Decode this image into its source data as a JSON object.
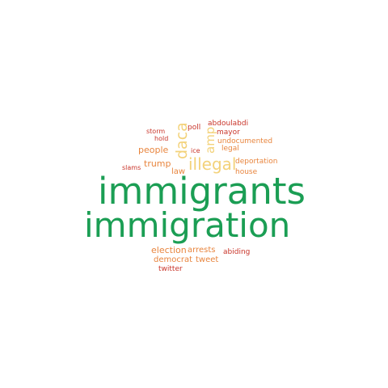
{
  "wordcloud": {
    "colors": {
      "green": "#1b9e54",
      "yellow": "#f3d27a",
      "orange": "#e8853e",
      "red": "#c9352a"
    },
    "words": {
      "immigrants": "immigrants",
      "immigration": "immigration",
      "illegal": "illegal",
      "daca": "daca",
      "amp": "amp",
      "people": "people",
      "trump": "trump",
      "law": "law",
      "election": "election",
      "arrests": "arrests",
      "democrat": "democrat",
      "tweet": "tweet",
      "twitter": "twitter",
      "abiding": "abiding",
      "house": "house",
      "deportation": "deportation",
      "legal": "legal",
      "undocumented": "undocumented",
      "mayor": "mayor",
      "abdoulabdi": "abdoulabdi",
      "poll": "poll",
      "ice": "ice",
      "storm": "storm",
      "hold": "hold",
      "slams": "slams"
    }
  }
}
